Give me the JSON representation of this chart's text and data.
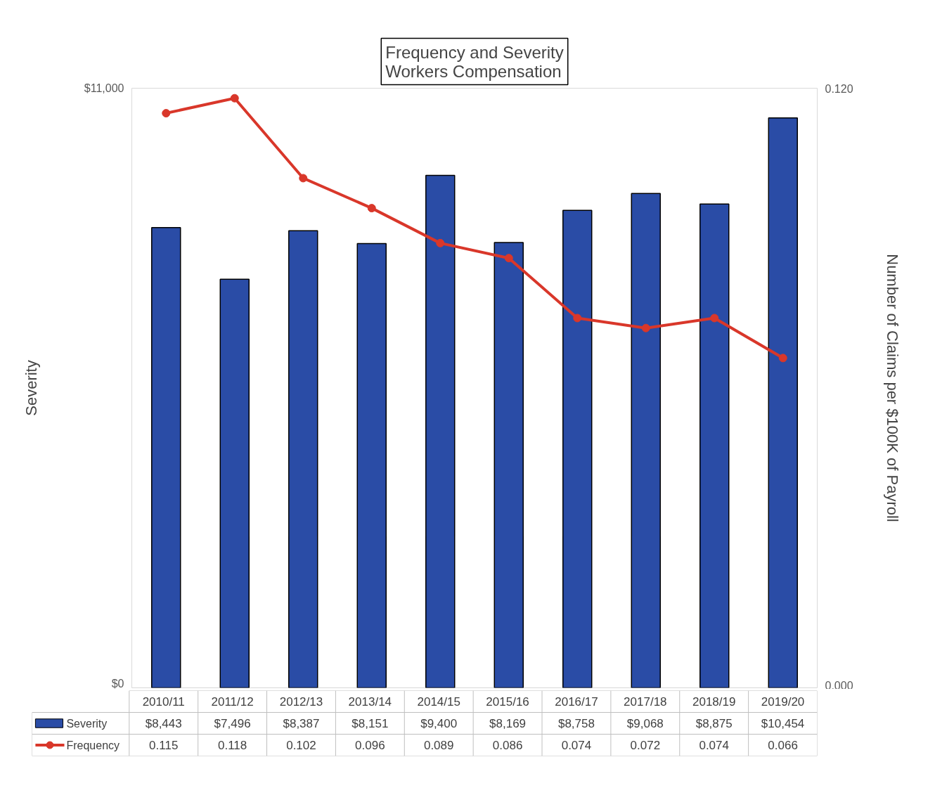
{
  "chart_data": {
    "type": "bar",
    "title": "Frequency and Severity",
    "subtitle": "Workers Compensation",
    "ylabel": "Severity",
    "y2label": "Number of Claims per $100K of Payroll",
    "categories": [
      "2010/11",
      "2011/12",
      "2012/13",
      "2013/14",
      "2014/15",
      "2015/16",
      "2016/17",
      "2017/18",
      "2018/19",
      "2019/20"
    ],
    "series": [
      {
        "name": "Severity",
        "color": "#2a4ca6",
        "values": [
          8443,
          7496,
          8387,
          8151,
          9400,
          8169,
          8758,
          9068,
          8875,
          10454
        ],
        "value_labels": [
          "$8,443",
          "$7,496",
          "$8,387",
          "$8,151",
          "$9,400",
          "$8,169",
          "$8,758",
          "$9,068",
          "$8,875",
          "$10,454"
        ]
      },
      {
        "name": "Frequency",
        "type": "line",
        "axis": "y2",
        "color": "#d9372a",
        "marker": "circle",
        "line_style": "solid",
        "values": [
          0.115,
          0.118,
          0.102,
          0.096,
          0.089,
          0.086,
          0.074,
          0.072,
          0.074,
          0.066
        ],
        "value_labels": [
          "0.115",
          "0.118",
          "0.102",
          "0.096",
          "0.089",
          "0.086",
          "0.074",
          "0.072",
          "0.074",
          "0.066"
        ]
      }
    ],
    "ylim": [
      0,
      11000
    ],
    "yticks": [
      {
        "value": 0,
        "label": "$0"
      },
      {
        "value": 11000,
        "label": "$11,000"
      }
    ],
    "y2lim": [
      0,
      0.12
    ],
    "y2ticks": [
      {
        "value": 0,
        "label": "0.000"
      },
      {
        "value": 0.12,
        "label": "0.120"
      }
    ],
    "grid": false,
    "legend": "bottom"
  }
}
